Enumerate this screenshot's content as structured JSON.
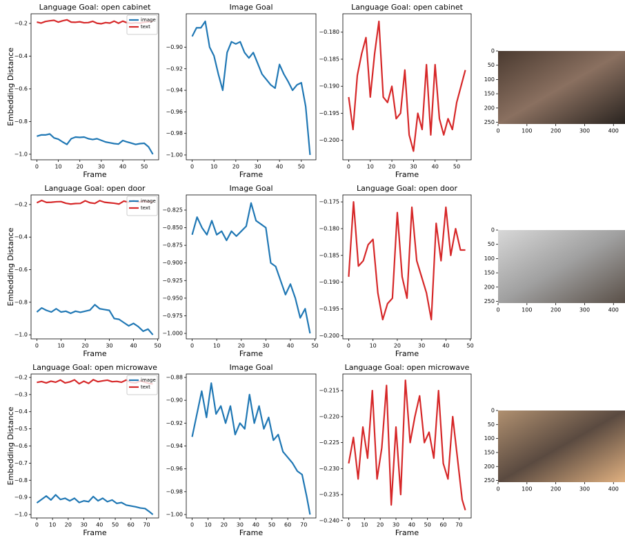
{
  "chart_data": [
    {
      "type": "line",
      "title": "Language Goal: open cabinet",
      "xlabel": "Frame",
      "ylabel": "Embedding Distance",
      "legend": "upper right",
      "x": [
        0,
        2,
        4,
        6,
        8,
        10,
        12,
        14,
        16,
        18,
        20,
        22,
        24,
        26,
        28,
        30,
        32,
        34,
        36,
        38,
        40,
        42,
        44,
        46,
        48,
        50,
        52,
        54
      ],
      "xlim": [
        -2.7,
        56.7
      ],
      "xticks": [
        0,
        10,
        20,
        30,
        40,
        50
      ],
      "ylim": [
        -1.034,
        -0.141
      ],
      "yticks": [
        {
          "value": -1.0,
          "label": "−1.0"
        },
        {
          "value": -0.8,
          "label": "−0.8"
        },
        {
          "value": -0.6,
          "label": "−0.6"
        },
        {
          "value": -0.4,
          "label": "−0.4"
        },
        {
          "value": -0.2,
          "label": "−0.2"
        }
      ],
      "series": [
        {
          "name": "image",
          "color": "#1f77b4",
          "values": [
            -0.89,
            -0.882,
            -0.882,
            -0.876,
            -0.9,
            -0.908,
            -0.925,
            -0.94,
            -0.905,
            -0.895,
            -0.897,
            -0.895,
            -0.905,
            -0.91,
            -0.905,
            -0.915,
            -0.925,
            -0.93,
            -0.935,
            -0.938,
            -0.916,
            -0.925,
            -0.932,
            -0.94,
            -0.935,
            -0.933,
            -0.955,
            -1.0
          ]
        },
        {
          "name": "text",
          "color": "#d62728",
          "values": [
            -0.192,
            -0.198,
            -0.188,
            -0.184,
            -0.181,
            -0.192,
            -0.184,
            -0.178,
            -0.192,
            -0.193,
            -0.19,
            -0.196,
            -0.195,
            -0.187,
            -0.199,
            -0.202,
            -0.195,
            -0.198,
            -0.186,
            -0.199,
            -0.186,
            -0.196,
            -0.199,
            -0.196,
            -0.198,
            -0.193,
            -0.19,
            -0.187
          ]
        }
      ]
    },
    {
      "type": "line",
      "title": "Image Goal",
      "xlabel": "Frame",
      "x": [
        0,
        2,
        4,
        6,
        8,
        10,
        12,
        14,
        16,
        18,
        20,
        22,
        24,
        26,
        28,
        30,
        32,
        34,
        36,
        38,
        40,
        42,
        44,
        46,
        48,
        50,
        52,
        54
      ],
      "xlim": [
        -2.7,
        56.7
      ],
      "xticks": [
        0,
        10,
        20,
        30,
        40,
        50
      ],
      "ylim": [
        -1.0045,
        -0.869
      ],
      "yticks": [
        {
          "value": -1.0,
          "label": "−1.00"
        },
        {
          "value": -0.98,
          "label": "−0.98"
        },
        {
          "value": -0.96,
          "label": "−0.96"
        },
        {
          "value": -0.94,
          "label": "−0.94"
        },
        {
          "value": -0.92,
          "label": "−0.92"
        },
        {
          "value": -0.9,
          "label": "−0.90"
        }
      ],
      "series": [
        {
          "color": "#1f77b4",
          "values": [
            -0.89,
            -0.882,
            -0.882,
            -0.876,
            -0.9,
            -0.908,
            -0.925,
            -0.94,
            -0.905,
            -0.895,
            -0.897,
            -0.895,
            -0.905,
            -0.91,
            -0.905,
            -0.915,
            -0.925,
            -0.93,
            -0.935,
            -0.938,
            -0.916,
            -0.925,
            -0.932,
            -0.94,
            -0.935,
            -0.933,
            -0.955,
            -1.0
          ]
        }
      ]
    },
    {
      "type": "line",
      "title": "Language Goal: open cabinet",
      "xlabel": "Frame",
      "x": [
        0,
        2,
        4,
        6,
        8,
        10,
        12,
        14,
        16,
        18,
        20,
        22,
        24,
        26,
        28,
        30,
        32,
        34,
        36,
        38,
        40,
        42,
        44,
        46,
        48,
        50,
        52,
        54
      ],
      "xlim": [
        -2.7,
        56.7
      ],
      "xticks": [
        0,
        10,
        20,
        30,
        40,
        50
      ],
      "ylim": [
        -0.2036,
        -0.1766
      ],
      "yticks": [
        {
          "value": -0.2,
          "label": "−0.200"
        },
        {
          "value": -0.195,
          "label": "−0.195"
        },
        {
          "value": -0.19,
          "label": "−0.190"
        },
        {
          "value": -0.185,
          "label": "−0.185"
        },
        {
          "value": -0.18,
          "label": "−0.180"
        }
      ],
      "series": [
        {
          "color": "#d62728",
          "values": [
            -0.192,
            -0.198,
            -0.188,
            -0.184,
            -0.181,
            -0.192,
            -0.184,
            -0.178,
            -0.192,
            -0.193,
            -0.19,
            -0.196,
            -0.195,
            -0.187,
            -0.199,
            -0.202,
            -0.195,
            -0.198,
            -0.186,
            -0.199,
            -0.186,
            -0.196,
            -0.199,
            -0.196,
            -0.198,
            -0.193,
            -0.19,
            -0.187
          ]
        }
      ]
    },
    {
      "type": "image",
      "xlim": [
        0,
        440
      ],
      "xticks": [
        0,
        100,
        200,
        300,
        400
      ],
      "ylim": [
        256,
        0
      ],
      "yticks": [
        0,
        50,
        100,
        150,
        200,
        250
      ]
    },
    {
      "type": "line",
      "title": "Language Goal: open door",
      "xlabel": "Frame",
      "ylabel": "Embedding Distance",
      "legend": "upper right",
      "x": [
        0,
        2,
        4,
        6,
        8,
        10,
        12,
        14,
        16,
        18,
        20,
        22,
        24,
        26,
        28,
        30,
        32,
        34,
        36,
        38,
        40,
        42,
        44,
        46,
        48
      ],
      "xlim": [
        -2.4,
        50.4
      ],
      "xticks": [
        0,
        10,
        20,
        30,
        40,
        50
      ],
      "ylim": [
        -1.025,
        -0.141
      ],
      "yticks": [
        {
          "value": -1.0,
          "label": "−1.0"
        },
        {
          "value": -0.8,
          "label": "−0.8"
        },
        {
          "value": -0.6,
          "label": "−0.6"
        },
        {
          "value": -0.4,
          "label": "−0.4"
        },
        {
          "value": -0.2,
          "label": "−0.2"
        }
      ],
      "series": [
        {
          "name": "image",
          "color": "#1f77b4",
          "values": [
            -0.86,
            -0.835,
            -0.85,
            -0.86,
            -0.84,
            -0.86,
            -0.855,
            -0.868,
            -0.855,
            -0.862,
            -0.855,
            -0.848,
            -0.815,
            -0.84,
            -0.845,
            -0.85,
            -0.9,
            -0.905,
            -0.925,
            -0.945,
            -0.93,
            -0.95,
            -0.978,
            -0.965,
            -1.0
          ]
        },
        {
          "name": "text",
          "color": "#d62728",
          "values": [
            -0.189,
            -0.175,
            -0.187,
            -0.186,
            -0.183,
            -0.182,
            -0.192,
            -0.197,
            -0.194,
            -0.193,
            -0.177,
            -0.189,
            -0.193,
            -0.176,
            -0.186,
            -0.189,
            -0.192,
            -0.197,
            -0.179,
            -0.186,
            -0.176,
            -0.185,
            -0.18,
            -0.184,
            -0.184
          ]
        }
      ]
    },
    {
      "type": "line",
      "title": "Image Goal",
      "xlabel": "Frame",
      "x": [
        0,
        2,
        4,
        6,
        8,
        10,
        12,
        14,
        16,
        18,
        20,
        22,
        24,
        26,
        28,
        30,
        32,
        34,
        36,
        38,
        40,
        42,
        44,
        46,
        48
      ],
      "xlim": [
        -2.4,
        50.4
      ],
      "xticks": [
        0,
        10,
        20,
        30,
        40,
        50
      ],
      "ylim": [
        -1.0078,
        -0.8035
      ],
      "yticks": [
        {
          "value": -1.0,
          "label": "−1.000"
        },
        {
          "value": -0.975,
          "label": "−0.975"
        },
        {
          "value": -0.95,
          "label": "−0.950"
        },
        {
          "value": -0.925,
          "label": "−0.925"
        },
        {
          "value": -0.9,
          "label": "−0.900"
        },
        {
          "value": -0.875,
          "label": "−0.875"
        },
        {
          "value": -0.85,
          "label": "−0.850"
        },
        {
          "value": -0.825,
          "label": "−0.825"
        }
      ],
      "series": [
        {
          "color": "#1f77b4",
          "values": [
            -0.86,
            -0.835,
            -0.85,
            -0.86,
            -0.84,
            -0.86,
            -0.855,
            -0.868,
            -0.855,
            -0.862,
            -0.855,
            -0.848,
            -0.815,
            -0.84,
            -0.845,
            -0.85,
            -0.9,
            -0.905,
            -0.925,
            -0.945,
            -0.93,
            -0.95,
            -0.978,
            -0.965,
            -1.0
          ]
        }
      ]
    },
    {
      "type": "line",
      "title": "Language Goal: open door",
      "xlabel": "Frame",
      "x": [
        0,
        2,
        4,
        6,
        8,
        10,
        12,
        14,
        16,
        18,
        20,
        22,
        24,
        26,
        28,
        30,
        32,
        34,
        36,
        38,
        40,
        42,
        44,
        46,
        48
      ],
      "xlim": [
        -2.4,
        50.4
      ],
      "xticks": [
        0,
        10,
        20,
        30,
        40,
        50
      ],
      "ylim": [
        -0.2006,
        -0.1737
      ],
      "yticks": [
        {
          "value": -0.2,
          "label": "−0.200"
        },
        {
          "value": -0.195,
          "label": "−0.195"
        },
        {
          "value": -0.19,
          "label": "−0.190"
        },
        {
          "value": -0.185,
          "label": "−0.185"
        },
        {
          "value": -0.18,
          "label": "−0.180"
        },
        {
          "value": -0.175,
          "label": "−0.175"
        }
      ],
      "series": [
        {
          "color": "#d62728",
          "values": [
            -0.189,
            -0.175,
            -0.187,
            -0.186,
            -0.183,
            -0.182,
            -0.192,
            -0.197,
            -0.194,
            -0.193,
            -0.177,
            -0.189,
            -0.193,
            -0.176,
            -0.186,
            -0.189,
            -0.192,
            -0.197,
            -0.179,
            -0.186,
            -0.176,
            -0.185,
            -0.18,
            -0.184,
            -0.184
          ]
        }
      ]
    },
    {
      "type": "image",
      "xlim": [
        0,
        440
      ],
      "xticks": [
        0,
        100,
        200,
        300,
        400
      ],
      "ylim": [
        256,
        0
      ],
      "yticks": [
        0,
        50,
        100,
        150,
        200,
        250
      ]
    },
    {
      "type": "line",
      "title": "Language Goal: open microwave",
      "xlabel": "Frame",
      "ylabel": "Embedding Distance",
      "legend": "upper right",
      "x": [
        0,
        3,
        6,
        9,
        12,
        15,
        18,
        21,
        24,
        27,
        30,
        33,
        36,
        39,
        42,
        45,
        48,
        51,
        54,
        57,
        60,
        63,
        66,
        69,
        72,
        74
      ],
      "xlim": [
        -3.7,
        77.7
      ],
      "xticks": [
        0,
        10,
        20,
        30,
        40,
        50,
        60,
        70
      ],
      "ylim": [
        -1.02,
        -0.18
      ],
      "yticks": [
        {
          "value": -1.0,
          "label": "−1.0"
        },
        {
          "value": -0.9,
          "label": "−0.9"
        },
        {
          "value": -0.8,
          "label": "−0.8"
        },
        {
          "value": -0.7,
          "label": "−0.7"
        },
        {
          "value": -0.6,
          "label": "−0.6"
        },
        {
          "value": -0.5,
          "label": "−0.5"
        },
        {
          "value": -0.4,
          "label": "−0.4"
        },
        {
          "value": -0.3,
          "label": "−0.3"
        },
        {
          "value": -0.2,
          "label": "−0.2"
        }
      ],
      "series": [
        {
          "name": "image",
          "color": "#1f77b4",
          "values": [
            -0.932,
            -0.912,
            -0.892,
            -0.915,
            -0.885,
            -0.912,
            -0.905,
            -0.92,
            -0.905,
            -0.93,
            -0.92,
            -0.925,
            -0.895,
            -0.92,
            -0.905,
            -0.925,
            -0.915,
            -0.935,
            -0.93,
            -0.945,
            -0.95,
            -0.955,
            -0.962,
            -0.965,
            -0.985,
            -1.0
          ]
        },
        {
          "name": "text",
          "color": "#d62728",
          "values": [
            -0.229,
            -0.224,
            -0.232,
            -0.222,
            -0.228,
            -0.215,
            -0.232,
            -0.226,
            -0.214,
            -0.237,
            -0.222,
            -0.235,
            -0.213,
            -0.225,
            -0.22,
            -0.216,
            -0.225,
            -0.223,
            -0.228,
            -0.215,
            -0.229,
            -0.232,
            -0.22,
            -0.228,
            -0.236,
            -0.238
          ]
        }
      ]
    },
    {
      "type": "line",
      "title": "Image Goal",
      "xlabel": "Frame",
      "x": [
        0,
        3,
        6,
        9,
        12,
        15,
        18,
        21,
        24,
        27,
        30,
        33,
        36,
        39,
        42,
        45,
        48,
        51,
        54,
        57,
        60,
        63,
        66,
        69,
        72,
        74
      ],
      "xlim": [
        -3.7,
        77.7
      ],
      "xticks": [
        0,
        10,
        20,
        30,
        40,
        50,
        60,
        70
      ],
      "ylim": [
        -1.003,
        -0.877
      ],
      "yticks": [
        {
          "value": -1.0,
          "label": "−1.00"
        },
        {
          "value": -0.98,
          "label": "−0.98"
        },
        {
          "value": -0.96,
          "label": "−0.96"
        },
        {
          "value": -0.94,
          "label": "−0.94"
        },
        {
          "value": -0.92,
          "label": "−0.92"
        },
        {
          "value": -0.9,
          "label": "−0.90"
        },
        {
          "value": -0.88,
          "label": "−0.88"
        }
      ],
      "series": [
        {
          "color": "#1f77b4",
          "values": [
            -0.932,
            -0.912,
            -0.892,
            -0.915,
            -0.885,
            -0.912,
            -0.905,
            -0.92,
            -0.905,
            -0.93,
            -0.92,
            -0.925,
            -0.895,
            -0.92,
            -0.905,
            -0.925,
            -0.915,
            -0.935,
            -0.93,
            -0.945,
            -0.95,
            -0.955,
            -0.962,
            -0.965,
            -0.985,
            -1.0
          ]
        }
      ]
    },
    {
      "type": "line",
      "title": "Language Goal: open microwave",
      "xlabel": "Frame",
      "x": [
        0,
        3,
        6,
        9,
        12,
        15,
        18,
        21,
        24,
        27,
        30,
        33,
        36,
        39,
        42,
        45,
        48,
        51,
        54,
        57,
        60,
        63,
        66,
        69,
        72,
        74
      ],
      "xlim": [
        -3.7,
        77.7
      ],
      "xticks": [
        0,
        10,
        20,
        30,
        40,
        50,
        60,
        70
      ],
      "ylim": [
        -0.2395,
        -0.2118
      ],
      "yticks": [
        {
          "value": -0.24,
          "label": "−0.240"
        },
        {
          "value": -0.235,
          "label": "−0.235"
        },
        {
          "value": -0.23,
          "label": "−0.230"
        },
        {
          "value": -0.225,
          "label": "−0.225"
        },
        {
          "value": -0.22,
          "label": "−0.220"
        },
        {
          "value": -0.215,
          "label": "−0.215"
        }
      ],
      "series": [
        {
          "color": "#d62728",
          "values": [
            -0.229,
            -0.224,
            -0.232,
            -0.222,
            -0.228,
            -0.215,
            -0.232,
            -0.226,
            -0.214,
            -0.237,
            -0.222,
            -0.235,
            -0.213,
            -0.225,
            -0.22,
            -0.216,
            -0.225,
            -0.223,
            -0.228,
            -0.215,
            -0.229,
            -0.232,
            -0.22,
            -0.228,
            -0.236,
            -0.238
          ]
        }
      ]
    },
    {
      "type": "image",
      "xlim": [
        0,
        440
      ],
      "xticks": [
        0,
        100,
        200,
        300,
        400
      ],
      "ylim": [
        256,
        0
      ],
      "yticks": [
        0,
        50,
        100,
        150,
        200,
        250
      ]
    }
  ]
}
